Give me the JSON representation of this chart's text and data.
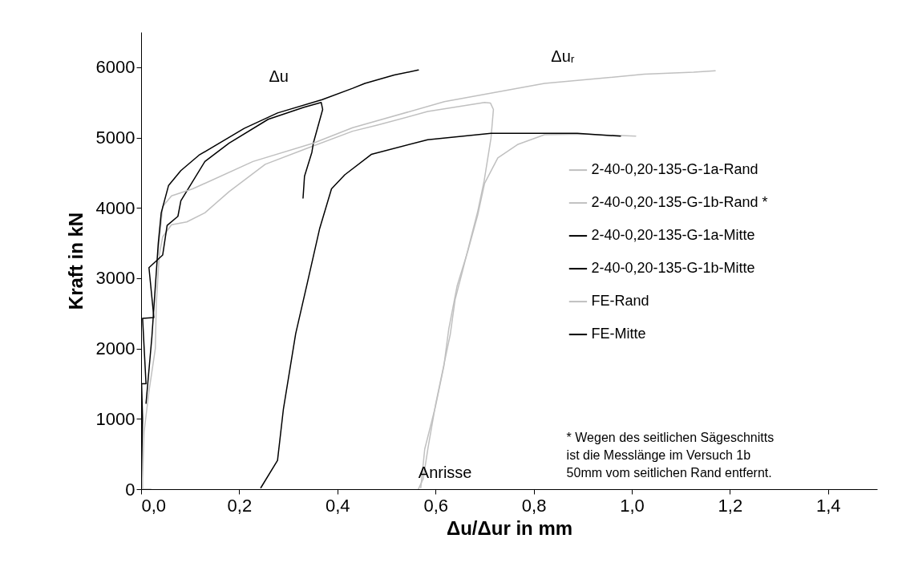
{
  "chart_data": {
    "type": "line",
    "xlabel": "Δu/Δur in mm",
    "ylabel": "Kraft in kN",
    "xlim": [
      0,
      1.5
    ],
    "ylim": [
      0,
      6500
    ],
    "xticks": [
      {
        "value": 0,
        "label": "0,0"
      },
      {
        "value": 0.2,
        "label": "0,2"
      },
      {
        "value": 0.4,
        "label": "0,4"
      },
      {
        "value": 0.6,
        "label": "0,6"
      },
      {
        "value": 0.8,
        "label": "0,8"
      },
      {
        "value": 1,
        "label": "1,0"
      },
      {
        "value": 1.2,
        "label": "1,2"
      },
      {
        "value": 1.4,
        "label": "1,4"
      }
    ],
    "yticks": [
      0,
      1000,
      2000,
      3000,
      4000,
      5000,
      6000
    ],
    "grid": false,
    "legend": "right",
    "marker": "none",
    "line_style": "solid",
    "series": [
      {
        "name": "2-40-0,20-135-G-1a-Rand",
        "color": "#c0c0c0",
        "x": [
          0.02,
          0.003,
          0.003,
          0.006,
          0.016,
          0.029,
          0.031,
          0.037,
          0.044,
          0.062,
          0.093,
          0.13,
          0.179,
          0.253,
          0.339,
          0.431,
          0.483,
          0.584,
          0.7,
          0.712,
          0.718,
          0.713,
          0.699,
          0.686,
          0.672,
          0.655,
          0.64,
          0.63,
          0.615,
          0.6,
          0.585,
          0.575,
          0.565
        ],
        "values": [
          0,
          0,
          160,
          810,
          1390,
          2000,
          2640,
          3330,
          3590,
          3760,
          3800,
          3930,
          4230,
          4620,
          4850,
          5090,
          5180,
          5370,
          5500,
          5490,
          5400,
          4990,
          4380,
          3950,
          3570,
          3100,
          2700,
          2200,
          1700,
          1200,
          600,
          150,
          0
        ]
      },
      {
        "name": "2-40-0,20-135-G-1b-Rand *",
        "color": "#c0c0c0",
        "x": [
          0.57,
          0.578,
          0.6,
          0.617,
          0.627,
          0.644,
          0.666,
          0.686,
          0.7,
          0.727,
          0.767,
          0.822,
          0.9,
          1.008
        ],
        "values": [
          20,
          570,
          1180,
          1750,
          2280,
          2890,
          3390,
          3900,
          4350,
          4710,
          4900,
          5040,
          5050,
          5020
        ]
      },
      {
        "name": "2-40-0,20-135-G-1a-Mitte",
        "color": "#000000",
        "x": [
          0,
          0.003,
          0.001,
          0.01,
          0.003,
          0.026,
          0.016,
          0.044,
          0.053,
          0.075,
          0.081,
          0.13,
          0.179,
          0.259,
          0.332,
          0.367,
          0.37,
          0.351,
          0.348,
          0.333,
          0.33
        ],
        "values": [
          0,
          1000,
          1500,
          1500,
          2430,
          2440,
          3150,
          3330,
          3750,
          3880,
          4100,
          4660,
          4920,
          5260,
          5430,
          5500,
          5400,
          4920,
          4790,
          4450,
          4140
        ]
      },
      {
        "name": "2-40-0,20-135-G-1b-Mitte",
        "color": "#000000",
        "x": [
          0.244,
          0.278,
          0.29,
          0.315,
          0.339,
          0.364,
          0.388,
          0.415,
          0.469,
          0.584,
          0.713,
          0.889,
          0.977
        ],
        "values": [
          20,
          410,
          1140,
          2210,
          2940,
          3710,
          4270,
          4470,
          4760,
          4970,
          5060,
          5060,
          5020
        ]
      },
      {
        "name": "FE-Rand",
        "color": "#c0c0c0",
        "x": [
          0.034,
          0.044,
          0.062,
          0.105,
          0.228,
          0.351,
          0.431,
          0.618,
          0.822,
          1.025,
          1.126,
          1.17
        ],
        "values": [
          3330,
          4020,
          4170,
          4270,
          4660,
          4920,
          5140,
          5510,
          5770,
          5900,
          5930,
          5950
        ]
      },
      {
        "name": "FE-Mitte",
        "color": "#000000",
        "x": [
          0.01,
          0.022,
          0.035,
          0.041,
          0.056,
          0.081,
          0.118,
          0.21,
          0.278,
          0.369,
          0.431,
          0.456,
          0.516,
          0.565
        ],
        "values": [
          1220,
          2170,
          3500,
          3930,
          4320,
          4530,
          4750,
          5130,
          5350,
          5540,
          5700,
          5770,
          5890,
          5960
        ]
      }
    ],
    "annotations": [
      "Δu",
      "Δuᵣ",
      "Anrisse",
      "* Wegen des seitlichen Sägeschnitts ist die Messlänge im Versuch 1b 50mm vom seitlichen Rand entfernt."
    ]
  }
}
